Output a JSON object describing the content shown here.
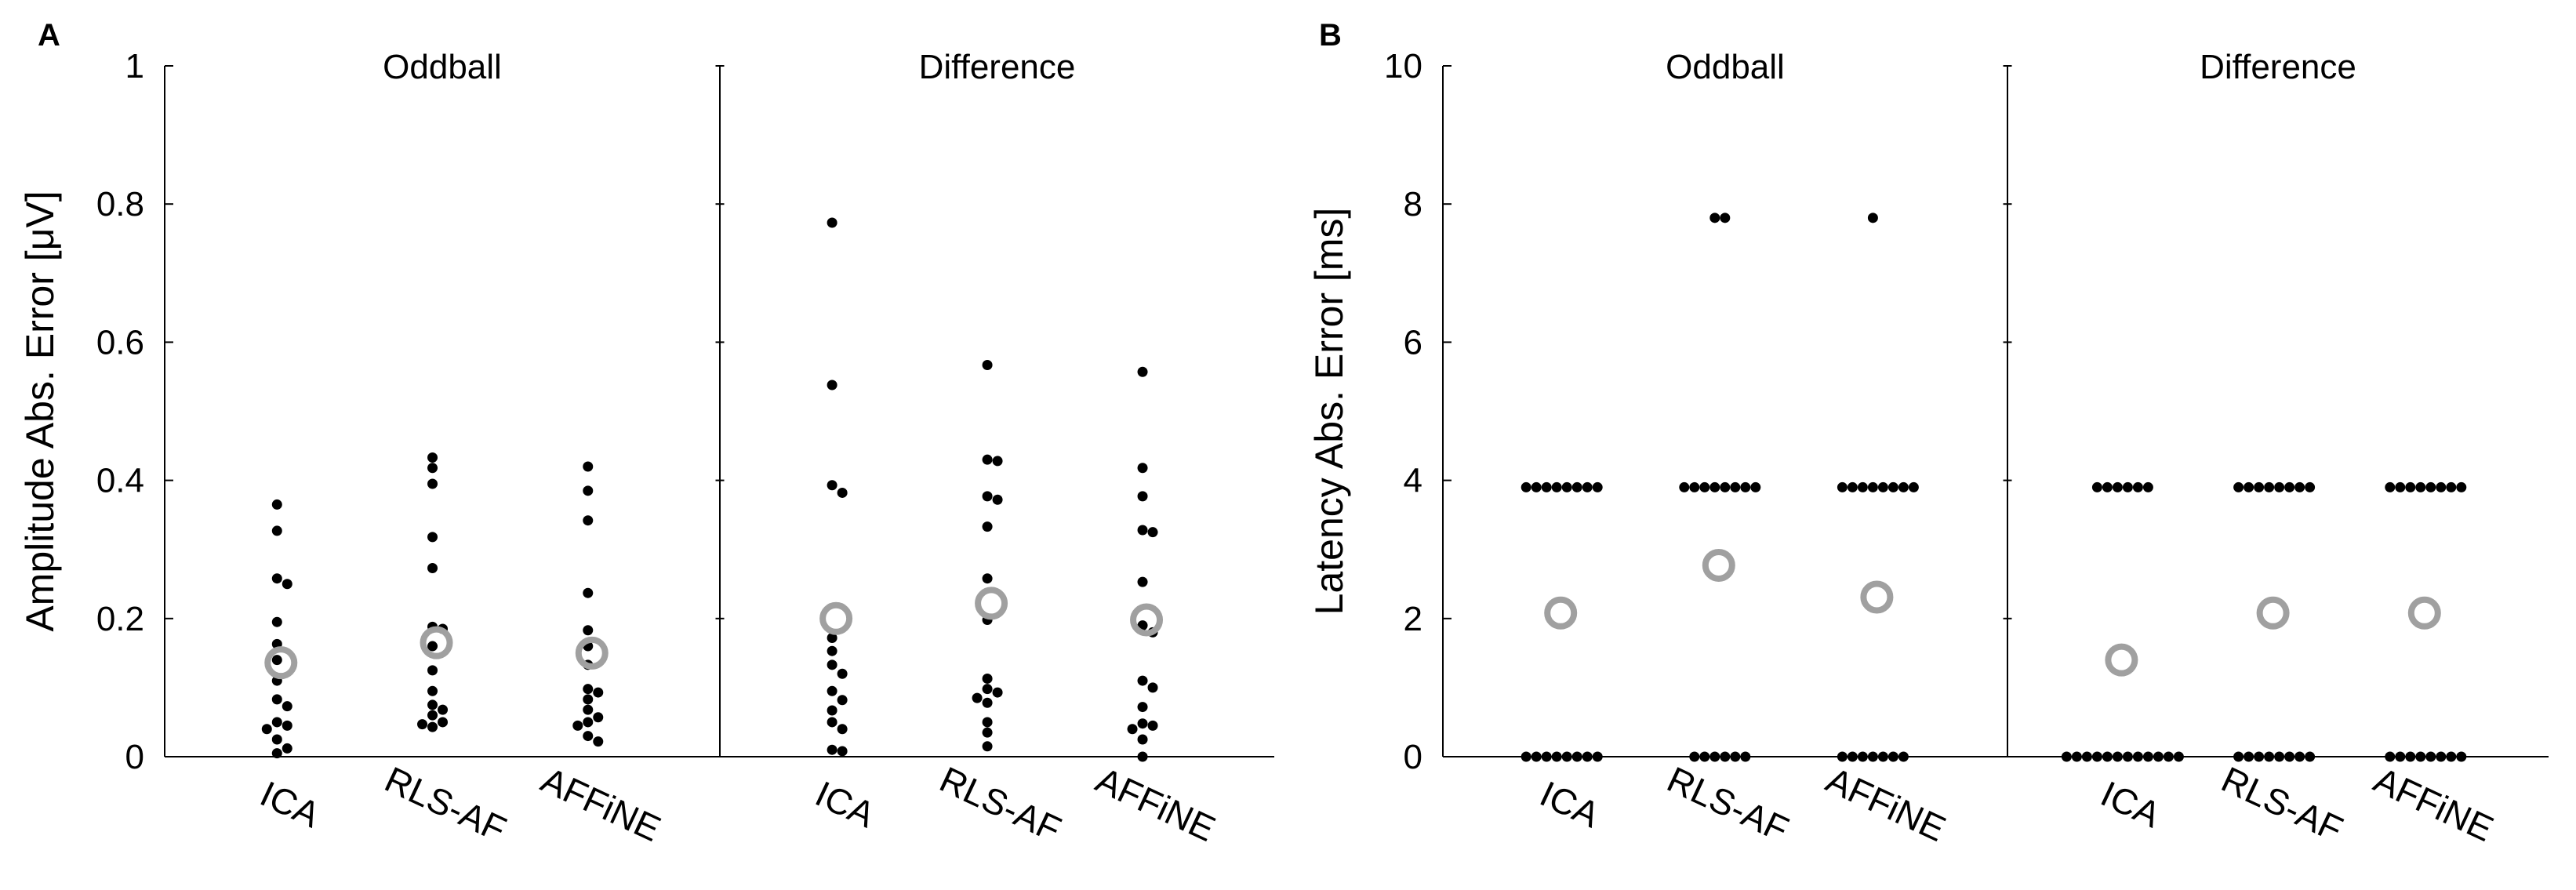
{
  "chart_data": [
    {
      "panel": "A",
      "type": "scatter",
      "ylabel": "Amplitude Abs. Error [μV]",
      "ylim": [
        0,
        1
      ],
      "yticks": [
        "0",
        "0.2",
        "0.4",
        "0.6",
        "0.8",
        "1"
      ],
      "ytick_values": [
        0,
        0.2,
        0.4,
        0.6,
        0.8,
        1
      ],
      "categories": [
        "ICA",
        "RLS-AF",
        "AFFiNE"
      ],
      "subplots": [
        {
          "title": "Oddball",
          "groups": [
            {
              "category": "ICA",
              "mean": 0.136,
              "points": [
                0.365,
                0.327,
                0.258,
                0.25,
                0.195,
                0.163,
                0.14,
                0.11,
                0.083,
                0.073,
                0.05,
                0.045,
                0.04,
                0.025,
                0.012,
                0.005
              ]
            },
            {
              "category": "RLS-AF",
              "mean": 0.165,
              "points": [
                0.433,
                0.418,
                0.395,
                0.318,
                0.273,
                0.188,
                0.185,
                0.16,
                0.125,
                0.095,
                0.075,
                0.068,
                0.06,
                0.05,
                0.047,
                0.043
              ]
            },
            {
              "category": "AFFiNE",
              "mean": 0.15,
              "points": [
                0.42,
                0.385,
                0.342,
                0.237,
                0.183,
                0.16,
                0.133,
                0.098,
                0.093,
                0.083,
                0.068,
                0.057,
                0.05,
                0.045,
                0.03,
                0.022
              ]
            }
          ]
        },
        {
          "title": "Difference",
          "groups": [
            {
              "category": "ICA",
              "mean": 0.2,
              "points": [
                0.773,
                0.538,
                0.393,
                0.382,
                0.172,
                0.153,
                0.133,
                0.12,
                0.095,
                0.082,
                0.067,
                0.05,
                0.04,
                0.01,
                0.008
              ]
            },
            {
              "category": "RLS-AF",
              "mean": 0.222,
              "points": [
                0.567,
                0.43,
                0.428,
                0.377,
                0.372,
                0.333,
                0.258,
                0.198,
                0.113,
                0.098,
                0.093,
                0.085,
                0.078,
                0.05,
                0.035,
                0.015
              ]
            },
            {
              "category": "AFFiNE",
              "mean": 0.198,
              "points": [
                0.557,
                0.418,
                0.377,
                0.328,
                0.325,
                0.253,
                0.19,
                0.18,
                0.11,
                0.1,
                0.072,
                0.048,
                0.045,
                0.04,
                0.025,
                0.0
              ]
            }
          ]
        }
      ]
    },
    {
      "panel": "B",
      "type": "scatter",
      "ylabel": "Latency Abs. Error [ms]",
      "ylim": [
        0,
        10
      ],
      "yticks": [
        "0",
        "2",
        "4",
        "6",
        "8",
        "10"
      ],
      "ytick_values": [
        0,
        2,
        4,
        6,
        8,
        10
      ],
      "categories": [
        "ICA",
        "RLS-AF",
        "AFFiNE"
      ],
      "subplots": [
        {
          "title": "Oddball",
          "groups": [
            {
              "category": "ICA",
              "mean": 2.08,
              "points": [
                3.9,
                3.9,
                3.9,
                3.9,
                3.9,
                3.9,
                3.9,
                3.9,
                0,
                0,
                0,
                0,
                0,
                0,
                0,
                0
              ]
            },
            {
              "category": "RLS-AF",
              "mean": 2.77,
              "points": [
                7.8,
                7.8,
                3.9,
                3.9,
                3.9,
                3.9,
                3.9,
                3.9,
                3.9,
                3.9,
                0,
                0,
                0,
                0,
                0,
                0
              ]
            },
            {
              "category": "AFFiNE",
              "mean": 2.31,
              "points": [
                7.8,
                3.9,
                3.9,
                3.9,
                3.9,
                3.9,
                3.9,
                3.9,
                3.9,
                0,
                0,
                0,
                0,
                0,
                0,
                0
              ]
            }
          ]
        },
        {
          "title": "Difference",
          "groups": [
            {
              "category": "ICA",
              "mean": 1.4,
              "points": [
                3.9,
                3.9,
                3.9,
                3.9,
                3.9,
                3.9,
                0,
                0,
                0,
                0,
                0,
                0,
                0,
                0,
                0,
                0,
                0,
                0
              ]
            },
            {
              "category": "RLS-AF",
              "mean": 2.08,
              "points": [
                3.9,
                3.9,
                3.9,
                3.9,
                3.9,
                3.9,
                3.9,
                3.9,
                0,
                0,
                0,
                0,
                0,
                0,
                0,
                0
              ]
            },
            {
              "category": "AFFiNE",
              "mean": 2.08,
              "points": [
                3.9,
                3.9,
                3.9,
                3.9,
                3.9,
                3.9,
                3.9,
                3.9,
                0,
                0,
                0,
                0,
                0,
                0,
                0,
                0
              ]
            }
          ]
        }
      ]
    }
  ],
  "colors": {
    "points": "#000000",
    "mean_marker": "#a0a0a0",
    "axes": "#000000"
  }
}
